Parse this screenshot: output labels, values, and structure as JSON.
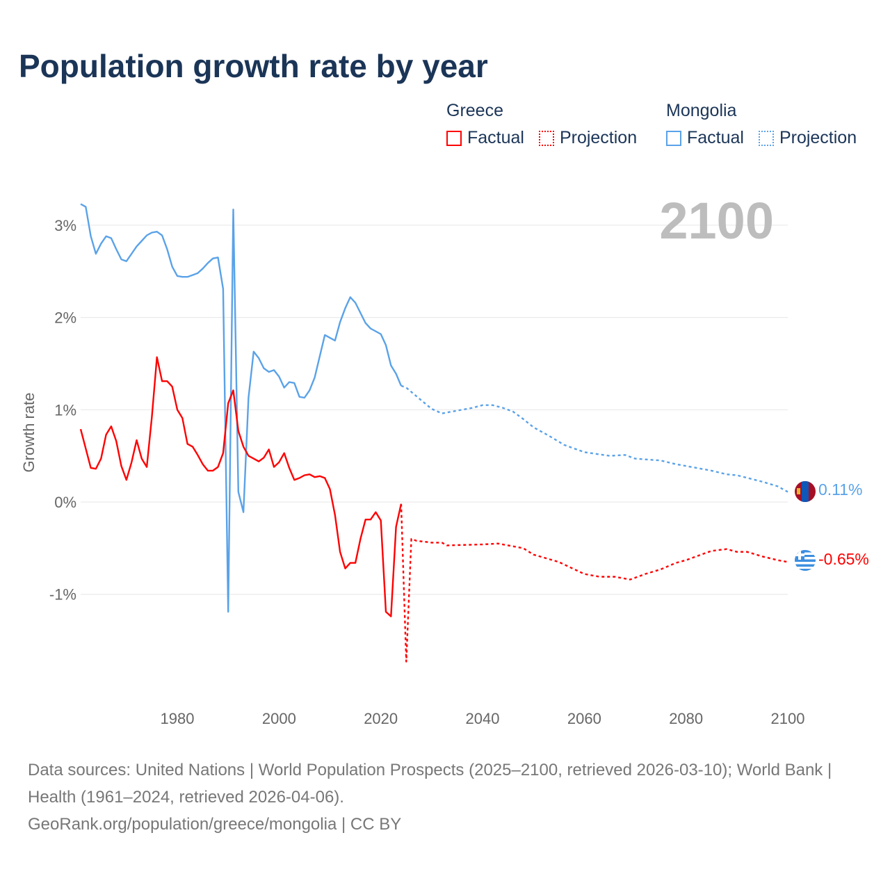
{
  "title": "Population growth rate by year",
  "current_year": "2100",
  "legend": {
    "groups": [
      {
        "name": "Greece",
        "factual": "Factual",
        "projection": "Projection",
        "color": "#ff0000"
      },
      {
        "name": "Mongolia",
        "factual": "Factual",
        "projection": "Projection",
        "color": "#5aa2e8"
      }
    ]
  },
  "end_labels": {
    "mongolia": "0.11%",
    "greece": "-0.65%"
  },
  "footer": {
    "sources": "Data sources: United Nations | World Population Prospects (2025–2100, retrieved 2026-03-10); World Bank | Health (1961–2024, retrieved 2026-04-06).",
    "credit": "GeoRank.org/population/greece/mongolia | CC BY"
  },
  "chart_data": {
    "type": "line",
    "title": "Population growth rate by year",
    "xlabel": "",
    "ylabel": "Growth rate",
    "xlim": [
      1961,
      2100
    ],
    "ylim": [
      -2.1,
      3.35
    ],
    "grid": true,
    "legend_placement": "top-right",
    "x_ticks": [
      1980,
      2000,
      2020,
      2040,
      2060,
      2080,
      2100
    ],
    "x_tick_labels": [
      "1980",
      "2000",
      "2020",
      "2040",
      "2060",
      "2080",
      "2100"
    ],
    "y_ticks": [
      -1,
      0,
      1,
      2,
      3
    ],
    "y_tick_labels": [
      "-1%",
      "0%",
      "1%",
      "2%",
      "3%"
    ],
    "series": [
      {
        "name": "Mongolia Factual",
        "color": "#5aa2e8",
        "dashed": false,
        "x": [
          1961,
          1962,
          1963,
          1964,
          1965,
          1966,
          1967,
          1968,
          1969,
          1970,
          1971,
          1972,
          1973,
          1974,
          1975,
          1976,
          1977,
          1978,
          1979,
          1980,
          1981,
          1982,
          1983,
          1984,
          1985,
          1986,
          1987,
          1988,
          1989,
          1990,
          1991,
          1992,
          1993,
          1994,
          1995,
          1996,
          1997,
          1998,
          1999,
          2000,
          2001,
          2002,
          2003,
          2004,
          2005,
          2006,
          2007,
          2008,
          2009,
          2010,
          2011,
          2012,
          2013,
          2014,
          2015,
          2016,
          2017,
          2018,
          2019,
          2020,
          2021,
          2022,
          2023,
          2024
        ],
        "y": [
          3.23,
          3.2,
          2.88,
          2.69,
          2.8,
          2.88,
          2.86,
          2.74,
          2.63,
          2.61,
          2.69,
          2.77,
          2.83,
          2.89,
          2.92,
          2.93,
          2.89,
          2.74,
          2.55,
          2.45,
          2.44,
          2.44,
          2.46,
          2.48,
          2.53,
          2.59,
          2.64,
          2.65,
          2.31,
          -1.19,
          3.17,
          0.11,
          -0.11,
          1.13,
          1.63,
          1.56,
          1.45,
          1.41,
          1.43,
          1.36,
          1.24,
          1.3,
          1.29,
          1.14,
          1.13,
          1.21,
          1.35,
          1.58,
          1.81,
          1.78,
          1.75,
          1.95,
          2.1,
          2.22,
          2.16,
          2.05,
          1.94,
          1.88,
          1.85,
          1.82,
          1.7,
          1.48,
          1.39,
          1.26
        ]
      },
      {
        "name": "Mongolia Projection",
        "color": "#5aa2e8",
        "dashed": true,
        "x": [
          2024,
          2025,
          2028,
          2030,
          2032,
          2035,
          2038,
          2040,
          2042,
          2044,
          2046,
          2048,
          2050,
          2053,
          2056,
          2060,
          2065,
          2068,
          2070,
          2075,
          2078,
          2080,
          2085,
          2088,
          2090,
          2095,
          2098,
          2100
        ],
        "y": [
          1.26,
          1.24,
          1.1,
          1.01,
          0.96,
          0.99,
          1.02,
          1.05,
          1.05,
          1.02,
          0.98,
          0.9,
          0.81,
          0.72,
          0.62,
          0.54,
          0.5,
          0.51,
          0.47,
          0.45,
          0.41,
          0.39,
          0.34,
          0.3,
          0.29,
          0.22,
          0.17,
          0.11
        ]
      },
      {
        "name": "Greece Factual",
        "color": "#ff0000",
        "dashed": false,
        "x": [
          1961,
          1962,
          1963,
          1964,
          1965,
          1966,
          1967,
          1968,
          1969,
          1970,
          1971,
          1972,
          1973,
          1974,
          1975,
          1976,
          1977,
          1978,
          1979,
          1980,
          1981,
          1982,
          1983,
          1984,
          1985,
          1986,
          1987,
          1988,
          1989,
          1990,
          1991,
          1992,
          1993,
          1994,
          1995,
          1996,
          1997,
          1998,
          1999,
          2000,
          2001,
          2002,
          2003,
          2004,
          2005,
          2006,
          2007,
          2008,
          2009,
          2010,
          2011,
          2012,
          2013,
          2014,
          2015,
          2016,
          2017,
          2018,
          2019,
          2020,
          2021,
          2022,
          2023,
          2024
        ],
        "y": [
          0.79,
          0.58,
          0.37,
          0.36,
          0.47,
          0.73,
          0.82,
          0.66,
          0.39,
          0.24,
          0.43,
          0.67,
          0.47,
          0.38,
          0.92,
          1.57,
          1.31,
          1.31,
          1.25,
          1.0,
          0.91,
          0.63,
          0.6,
          0.51,
          0.41,
          0.34,
          0.34,
          0.38,
          0.53,
          1.07,
          1.21,
          0.77,
          0.6,
          0.5,
          0.47,
          0.44,
          0.48,
          0.57,
          0.38,
          0.43,
          0.53,
          0.37,
          0.24,
          0.26,
          0.29,
          0.3,
          0.27,
          0.28,
          0.26,
          0.14,
          -0.14,
          -0.54,
          -0.72,
          -0.66,
          -0.66,
          -0.4,
          -0.19,
          -0.19,
          -0.11,
          -0.2,
          -1.19,
          -1.24,
          -0.27,
          -0.02
        ]
      },
      {
        "name": "Greece Projection",
        "color": "#ff0000",
        "dashed": true,
        "x": [
          2024,
          2025,
          2026,
          2027,
          2030,
          2032,
          2033,
          2040,
          2043,
          2046,
          2048,
          2050,
          2055,
          2060,
          2063,
          2066,
          2069,
          2072,
          2075,
          2078,
          2080,
          2083,
          2085,
          2088,
          2090,
          2092,
          2095,
          2098,
          2100
        ],
        "y": [
          -0.02,
          -1.73,
          -0.4,
          -0.42,
          -0.44,
          -0.44,
          -0.47,
          -0.46,
          -0.45,
          -0.48,
          -0.5,
          -0.57,
          -0.65,
          -0.78,
          -0.81,
          -0.81,
          -0.84,
          -0.78,
          -0.73,
          -0.66,
          -0.63,
          -0.57,
          -0.53,
          -0.51,
          -0.54,
          -0.54,
          -0.59,
          -0.63,
          -0.65
        ]
      }
    ]
  }
}
